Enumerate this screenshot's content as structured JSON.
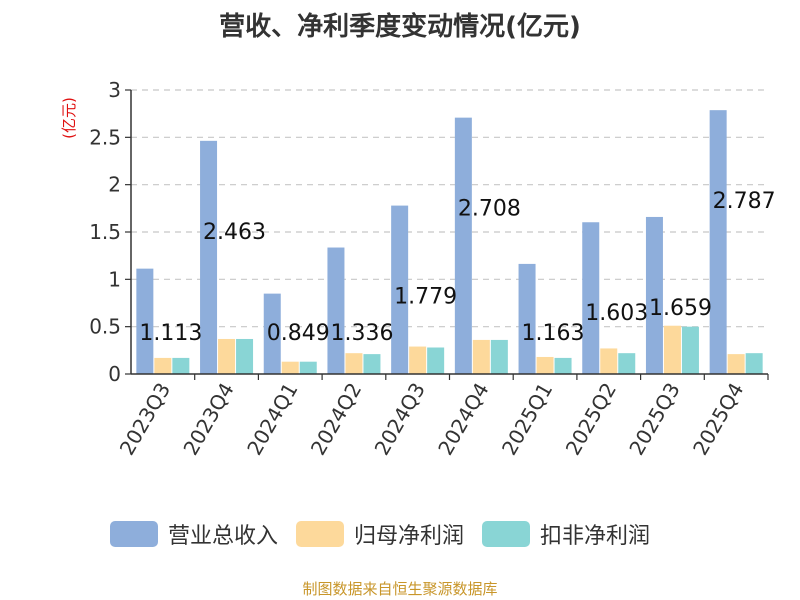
{
  "chart_data": {
    "type": "bar",
    "title": "营收、净利季度变动情况(亿元)",
    "unit": "(亿元)",
    "categories": [
      "2023Q3",
      "2023Q4",
      "2024Q1",
      "2024Q2",
      "2024Q3",
      "2024Q4",
      "2025Q1",
      "2025Q2",
      "2025Q3",
      "2025Q4"
    ],
    "series": [
      {
        "name": "营业总收入",
        "color": "#8eaedb",
        "values": [
          1.113,
          2.463,
          0.849,
          1.336,
          1.779,
          2.708,
          1.163,
          1.603,
          1.659,
          2.787
        ],
        "labels": [
          "1.113",
          "2.463",
          "0.849",
          "1.336",
          "1.779",
          "2.708",
          "1.163",
          "1.603",
          "1.659",
          "2.787"
        ]
      },
      {
        "name": "归母净利润",
        "color": "#fdd99b",
        "values": [
          0.17,
          0.37,
          0.13,
          0.22,
          0.29,
          0.36,
          0.18,
          0.27,
          0.51,
          0.21
        ]
      },
      {
        "name": "扣非净利润",
        "color": "#89d5d5",
        "values": [
          0.17,
          0.37,
          0.13,
          0.21,
          0.28,
          0.36,
          0.17,
          0.22,
          0.5,
          0.22
        ]
      }
    ],
    "yticks": [
      "0",
      "0.5",
      "1",
      "1.5",
      "2",
      "2.5",
      "3"
    ],
    "ylim": [
      0,
      3
    ],
    "grid": true,
    "legend": "bottom"
  },
  "footer": "制图数据来自恒生聚源数据库"
}
